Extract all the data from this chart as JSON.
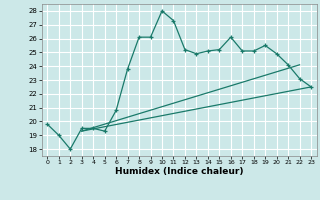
{
  "xlabel": "Humidex (Indice chaleur)",
  "bg_color": "#cce8e8",
  "grid_color": "#ffffff",
  "line_color": "#1a7a6a",
  "xlim": [
    -0.5,
    23.5
  ],
  "ylim": [
    17.5,
    28.5
  ],
  "yticks": [
    18,
    19,
    20,
    21,
    22,
    23,
    24,
    25,
    26,
    27,
    28
  ],
  "xticks": [
    0,
    1,
    2,
    3,
    4,
    5,
    6,
    7,
    8,
    9,
    10,
    11,
    12,
    13,
    14,
    15,
    16,
    17,
    18,
    19,
    20,
    21,
    22,
    23
  ],
  "main_line": {
    "x": [
      0,
      1,
      2,
      3,
      4,
      5,
      6,
      7,
      8,
      9,
      10,
      11,
      12,
      13,
      14,
      15,
      16,
      17,
      18,
      19,
      20,
      21,
      22,
      23
    ],
    "y": [
      19.8,
      19.0,
      18.0,
      19.5,
      19.5,
      19.3,
      20.8,
      23.8,
      26.1,
      26.1,
      28.0,
      27.3,
      25.2,
      24.9,
      25.1,
      25.2,
      26.1,
      25.1,
      25.1,
      25.5,
      24.9,
      24.1,
      23.1,
      22.5
    ]
  },
  "line2": {
    "x": [
      3,
      22
    ],
    "y": [
      19.3,
      24.1
    ]
  },
  "line3": {
    "x": [
      3,
      23
    ],
    "y": [
      19.3,
      22.5
    ]
  }
}
